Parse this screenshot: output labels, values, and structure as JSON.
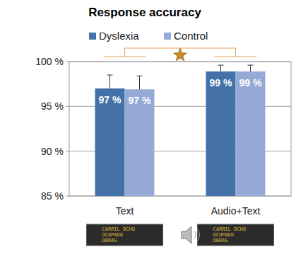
{
  "chart_data": {
    "type": "bar",
    "title": "Response accuracy",
    "categories": [
      "Text",
      "Audio+Text"
    ],
    "series": [
      {
        "name": "Dyslexia",
        "color": "#4472a8",
        "values": [
          97.0,
          98.9
        ],
        "value_labels": [
          "97 %",
          "99 %"
        ],
        "errors": [
          1.5,
          0.7
        ]
      },
      {
        "name": "Control",
        "color": "#95aad6",
        "values": [
          96.9,
          98.9
        ],
        "value_labels": [
          "97 %",
          "99 %"
        ],
        "errors": [
          1.5,
          0.7
        ]
      }
    ],
    "ylim": [
      85,
      100
    ],
    "yticks": [
      {
        "value": 85,
        "label": "85 %"
      },
      {
        "value": 90,
        "label": "90 %"
      },
      {
        "value": 95,
        "label": "95 %"
      },
      {
        "value": 100,
        "label": "100 %"
      }
    ],
    "grid": true,
    "legend": "top",
    "data_labels": true,
    "annotations": [
      "CARRIL DCHO",
      "OCUPADO",
      "OBRAS"
    ]
  }
}
